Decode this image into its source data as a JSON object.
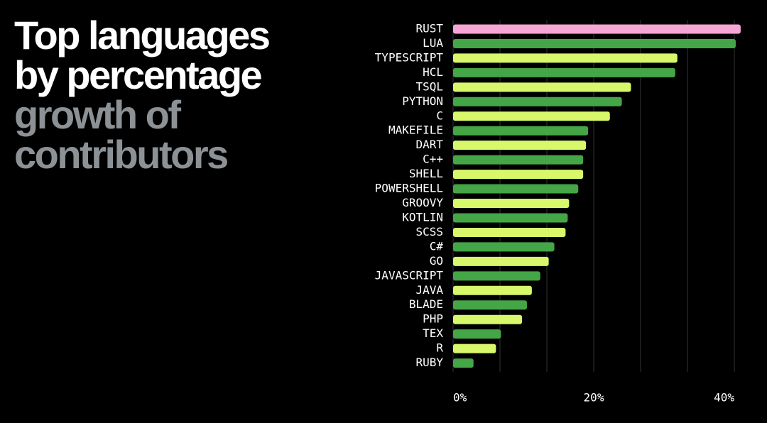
{
  "chart_data": {
    "type": "barh",
    "title": "Top languages by percentage",
    "subtitle": "growth of contributors",
    "categories": [
      "RUST",
      "LUA",
      "TYPESCRIPT",
      "HCL",
      "TSQL",
      "PYTHON",
      "C",
      "MAKEFILE",
      "DART",
      "C++",
      "SHELL",
      "POWERSHELL",
      "GROOVY",
      "KOTLIN",
      "SCSS",
      "C#",
      "GO",
      "JAVASCRIPT",
      "JAVA",
      "BLADE",
      "PHP",
      "TEX",
      "R",
      "RUBY"
    ],
    "values": [
      40.9,
      40.2,
      31.9,
      31.6,
      25.3,
      24.0,
      22.3,
      19.2,
      18.9,
      18.5,
      18.5,
      17.8,
      16.5,
      16.3,
      16.0,
      14.4,
      13.6,
      12.4,
      11.2,
      10.5,
      9.8,
      6.8,
      6.1,
      2.9
    ],
    "colors": [
      "#f6a6d6",
      "#44a646",
      "#d8f76b",
      "#44a646",
      "#d8f76b",
      "#44a646",
      "#d8f76b",
      "#44a646",
      "#d8f76b",
      "#44a646",
      "#d8f76b",
      "#44a646",
      "#d8f76b",
      "#44a646",
      "#d8f76b",
      "#44a646",
      "#d8f76b",
      "#44a646",
      "#d8f76b",
      "#44a646",
      "#d8f76b",
      "#44a646",
      "#d8f76b",
      "#44a646"
    ],
    "xlim": [
      0,
      42
    ],
    "xticks": [
      {
        "value": 0,
        "label": "0%"
      },
      {
        "value": 20,
        "label": "20%"
      },
      {
        "value": 40,
        "label": "40%"
      }
    ],
    "grid": true
  }
}
